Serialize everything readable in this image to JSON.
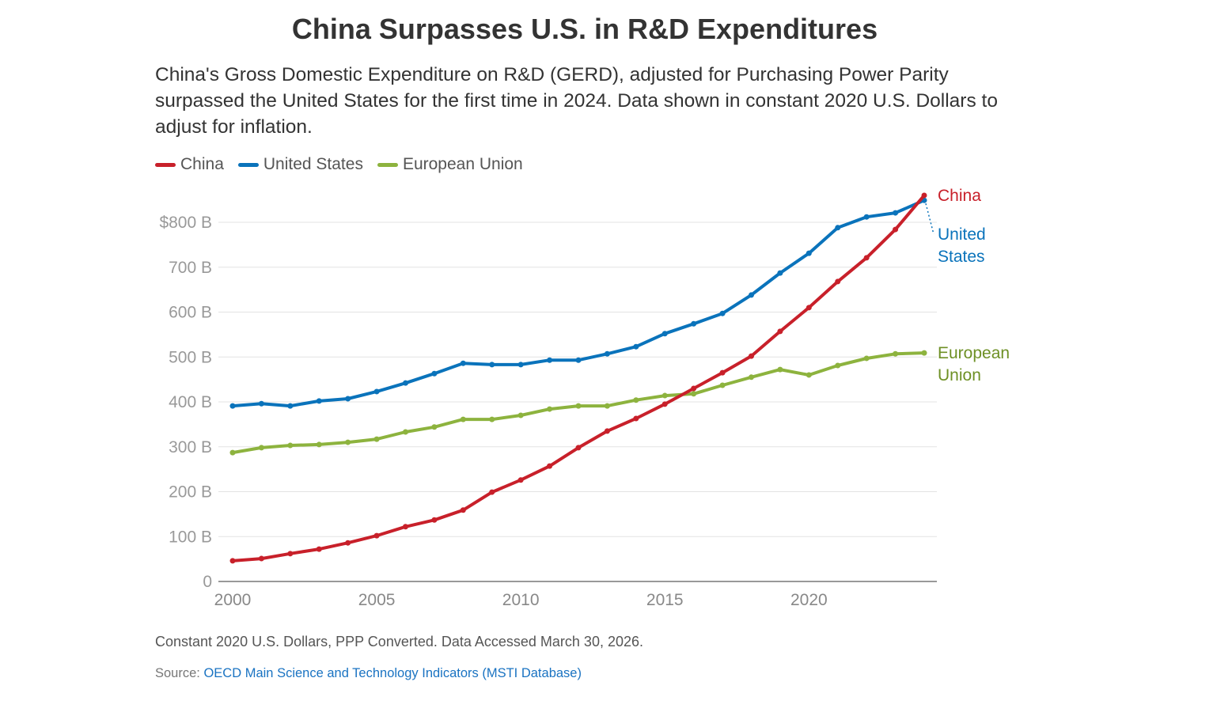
{
  "title": "China Surpasses U.S. in R&D Expenditures",
  "subtitle": "China's Gross Domestic Expenditure on R&D (GERD), adjusted for Purchasing Power Parity surpassed the United States for the first time in 2024. Data shown in constant 2020 U.S. Dollars to adjust for inflation.",
  "note": "Constant 2020 U.S. Dollars, PPP Converted. Data Accessed March 30, 2026.",
  "source": {
    "label": "Source:",
    "link_text": "OECD Main Science and Technology Indicators (MSTI Database)"
  },
  "chart_data": {
    "type": "line",
    "title": "China Surpasses U.S. in R&D Expenditures",
    "xlabel": "",
    "ylabel": "",
    "ylim": [
      0,
      800
    ],
    "xlim": [
      2000,
      2024
    ],
    "grid": true,
    "legend": "top-left",
    "yticks": [
      0,
      100,
      200,
      300,
      400,
      500,
      600,
      700,
      800
    ],
    "ytick_labels": [
      "0",
      "100 B",
      "200 B",
      "300 B",
      "400 B",
      "500 B",
      "600 B",
      "700 B",
      "$800 B"
    ],
    "xticks": [
      2000,
      2005,
      2010,
      2015,
      2020
    ],
    "xtick_labels": [
      "2000",
      "2005",
      "2010",
      "2015",
      "2020"
    ],
    "x": [
      2000,
      2001,
      2002,
      2003,
      2004,
      2005,
      2006,
      2007,
      2008,
      2009,
      2010,
      2011,
      2012,
      2013,
      2014,
      2015,
      2016,
      2017,
      2018,
      2019,
      2020,
      2021,
      2022,
      2023,
      2024
    ],
    "series": [
      {
        "name": "China",
        "color": "#c8202a",
        "end_label": [
          "China"
        ],
        "values": [
          46,
          51,
          62,
          72,
          86,
          102,
          122,
          137,
          159,
          199,
          226,
          257,
          298,
          335,
          363,
          395,
          430,
          465,
          502,
          557,
          610,
          668,
          721,
          784,
          860
        ]
      },
      {
        "name": "United States",
        "color": "#0a73bb",
        "end_label": [
          "United",
          "States"
        ],
        "values": [
          391,
          396,
          391,
          402,
          407,
          423,
          442,
          463,
          486,
          483,
          483,
          493,
          493,
          507,
          523,
          552,
          574,
          597,
          638,
          687,
          731,
          788,
          812,
          821,
          849
        ]
      },
      {
        "name": "European Union",
        "color": "#8db33e",
        "label_color": "#6e9025",
        "end_label": [
          "European",
          "Union"
        ],
        "values": [
          287,
          298,
          303,
          305,
          310,
          317,
          333,
          344,
          361,
          361,
          370,
          384,
          391,
          391,
          404,
          414,
          418,
          437,
          455,
          472,
          460,
          481,
          497,
          507,
          509
        ]
      }
    ]
  }
}
